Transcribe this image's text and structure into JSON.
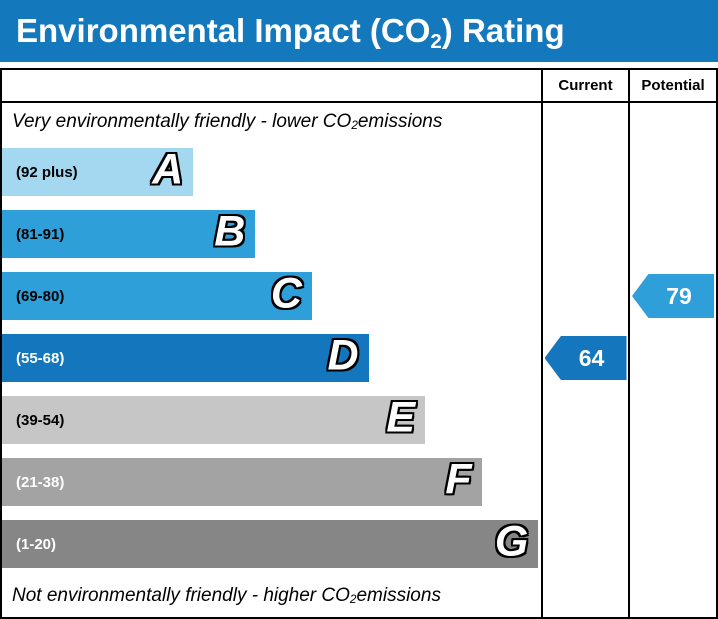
{
  "title": {
    "prefix": "Environmental Impact (CO",
    "sub": "2",
    "suffix": ") Rating"
  },
  "header": {
    "current": "Current",
    "potential": "Potential"
  },
  "notes": {
    "top": {
      "prefix": "Very environmentally friendly - lower CO",
      "sub": "2",
      "suffix": " emissions"
    },
    "bottom": {
      "prefix": "Not environmentally friendly - higher CO",
      "sub": "2",
      "suffix": " emissions"
    }
  },
  "colors": {
    "header_bar": "#1478bd",
    "border": "#000000"
  },
  "chart_data": {
    "type": "bar",
    "subtype": "epc-environmental-impact-co2-rating",
    "title": "Environmental Impact (CO2) Rating",
    "bands": [
      {
        "letter": "A",
        "range": "(92 plus)",
        "color": "#a4d7f0",
        "text_color": "#000000",
        "width_pct": 35.5
      },
      {
        "letter": "B",
        "range": "(81-91)",
        "color": "#2e9fd9",
        "text_color": "#000000",
        "width_pct": 47.0
      },
      {
        "letter": "C",
        "range": "(69-80)",
        "color": "#2e9fd9",
        "text_color": "#000000",
        "width_pct": 57.5
      },
      {
        "letter": "D",
        "range": "(55-68)",
        "color": "#1477bd",
        "text_color": "#ffffff",
        "width_pct": 68.0
      },
      {
        "letter": "E",
        "range": "(39-54)",
        "color": "#c6c6c6",
        "text_color": "#000000",
        "width_pct": 78.5
      },
      {
        "letter": "F",
        "range": "(21-38)",
        "color": "#a3a3a3",
        "text_color": "#ffffff",
        "width_pct": 89.0
      },
      {
        "letter": "G",
        "range": "(1-20)",
        "color": "#868686",
        "text_color": "#ffffff",
        "width_pct": 99.5
      }
    ],
    "current": {
      "value": 64,
      "band": "D",
      "color": "#1477bd"
    },
    "potential": {
      "value": 79,
      "band": "C",
      "color": "#2e9fd9"
    }
  }
}
